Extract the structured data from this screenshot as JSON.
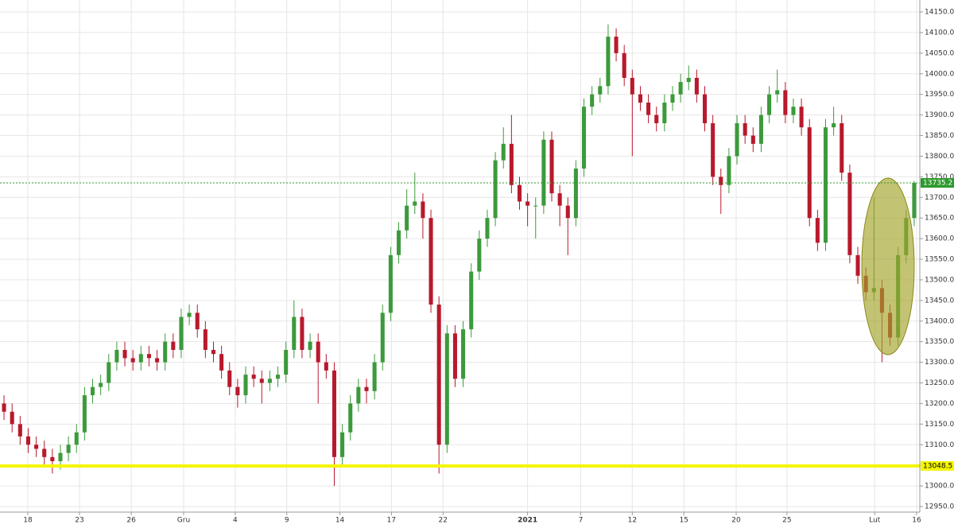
{
  "chart_data": {
    "type": "candlestick",
    "up_color": "#3c9a3c",
    "down_color": "#b8192c",
    "grid": true,
    "xlim": [
      -0.5,
      113.5
    ],
    "xticks": [
      {
        "value": 2.95,
        "label": "18"
      },
      {
        "value": 9.37,
        "label": "23"
      },
      {
        "value": 15.8,
        "label": "26"
      },
      {
        "value": 22.3,
        "label": "Gru"
      },
      {
        "value": 28.7,
        "label": "4"
      },
      {
        "value": 35.1,
        "label": "9"
      },
      {
        "value": 41.7,
        "label": "14"
      },
      {
        "value": 48.1,
        "label": "17"
      },
      {
        "value": 54.5,
        "label": "22"
      },
      {
        "value": 65,
        "label": "2021"
      },
      {
        "value": 71.6,
        "label": "7"
      },
      {
        "value": 78,
        "label": "12"
      },
      {
        "value": 84.4,
        "label": "15"
      },
      {
        "value": 90.9,
        "label": "20"
      },
      {
        "value": 97.2,
        "label": "25"
      },
      {
        "value": 108.1,
        "label": "Lut"
      },
      {
        "value": 113.3,
        "label": "16"
      }
    ],
    "ylim": [
      12950,
      14150
    ],
    "yticks": [
      {
        "value": 12950,
        "label": "12950.0"
      },
      {
        "value": 13000,
        "label": "13000.0"
      },
      {
        "value": 13050,
        "label": "13050.0"
      },
      {
        "value": 13100,
        "label": "13100.0"
      },
      {
        "value": 13150,
        "label": "13150.0"
      },
      {
        "value": 13200,
        "label": "13200.0"
      },
      {
        "value": 13250,
        "label": "13250.0"
      },
      {
        "value": 13300,
        "label": "13300.0"
      },
      {
        "value": 13350,
        "label": "13350.0"
      },
      {
        "value": 13400,
        "label": "13400.0"
      },
      {
        "value": 13450,
        "label": "13450.0"
      },
      {
        "value": 13500,
        "label": "13500.0"
      },
      {
        "value": 13550,
        "label": "13550.0"
      },
      {
        "value": 13600,
        "label": "13600.0"
      },
      {
        "value": 13650,
        "label": "13650.0"
      },
      {
        "value": 13700,
        "label": "13700.0"
      },
      {
        "value": 13750,
        "label": "13750.0"
      },
      {
        "value": 13800,
        "label": "13800.0"
      },
      {
        "value": 13850,
        "label": "13850.0"
      },
      {
        "value": 13900,
        "label": "13900.0"
      },
      {
        "value": 13950,
        "label": "13950.0"
      },
      {
        "value": 14000,
        "label": "14000.0"
      },
      {
        "value": 14050,
        "label": "14050.0"
      },
      {
        "value": 14100,
        "label": "14100.0"
      },
      {
        "value": 14150,
        "label": "14150.0"
      }
    ],
    "price_lines": [
      {
        "value": 13048.5,
        "color": "#f5f500"
      },
      {
        "value": 13735.2,
        "color": "#2e9a2e"
      }
    ],
    "open": [
      13200,
      13180,
      13150,
      13120,
      13100,
      13090,
      13070,
      13060,
      13080,
      13100,
      13130,
      13220,
      13240,
      13250,
      13300,
      13330,
      13310,
      13300,
      13320,
      13310,
      13300,
      13350,
      13330,
      13410,
      13420,
      13380,
      13330,
      13320,
      13280,
      13240,
      13220,
      13270,
      13260,
      13250,
      13260,
      13270,
      13330,
      13410,
      13330,
      13350,
      13300,
      13280,
      13070,
      13130,
      13200,
      13240,
      13230,
      13300,
      13420,
      13560,
      13620,
      13680,
      13690,
      13650,
      13440,
      13100,
      13370,
      13260,
      13380,
      13520,
      13600,
      13650,
      13790,
      13830,
      13730,
      13690,
      13680,
      13680,
      13840,
      13710,
      13680,
      13650,
      13770,
      13920,
      13950,
      13970,
      14090,
      14050,
      13990,
      13950,
      13930,
      13900,
      13880,
      13930,
      13950,
      13980,
      13990,
      13950,
      13880,
      13750,
      13730,
      13800,
      13880,
      13850,
      13830,
      13900,
      13950,
      13960,
      13900,
      13920,
      13870,
      13650,
      13590,
      13870,
      13880,
      13760,
      13560,
      13510,
      13470,
      13480,
      13420,
      13360,
      13560,
      13650
    ],
    "high": [
      13220,
      13200,
      13170,
      13140,
      13120,
      13110,
      13090,
      13100,
      13120,
      13150,
      13240,
      13260,
      13270,
      13320,
      13350,
      13350,
      13330,
      13340,
      13340,
      13330,
      13370,
      13370,
      13430,
      13440,
      13440,
      13400,
      13350,
      13340,
      13300,
      13260,
      13290,
      13290,
      13280,
      13280,
      13290,
      13350,
      13450,
      13430,
      13370,
      13370,
      13320,
      13300,
      13150,
      13220,
      13260,
      13260,
      13320,
      13440,
      13580,
      13640,
      13720,
      13760,
      13710,
      13670,
      13460,
      13390,
      13390,
      13400,
      13540,
      13620,
      13670,
      13810,
      13870,
      13900,
      13750,
      13710,
      13700,
      13860,
      13860,
      13730,
      13700,
      13790,
      13940,
      13970,
      13990,
      14120,
      14110,
      14070,
      14010,
      13970,
      13950,
      13920,
      13950,
      13970,
      14000,
      14020,
      14010,
      13970,
      13900,
      13770,
      13820,
      13900,
      13900,
      13870,
      13920,
      13970,
      14010,
      13980,
      13940,
      13940,
      13890,
      13670,
      13890,
      13920,
      13900,
      13780,
      13580,
      13530,
      13700,
      13500,
      13440,
      13580,
      13670,
      13740
    ],
    "low": [
      13160,
      13130,
      13100,
      13080,
      13070,
      13050,
      13030,
      13040,
      13060,
      13080,
      13110,
      13200,
      13220,
      13230,
      13280,
      13290,
      13280,
      13280,
      13290,
      13280,
      13280,
      13310,
      13310,
      13390,
      13360,
      13310,
      13300,
      13260,
      13220,
      13190,
      13200,
      13240,
      13200,
      13230,
      13240,
      13250,
      13310,
      13310,
      13310,
      13200,
      13260,
      13000,
      13050,
      13110,
      13180,
      13200,
      13210,
      13280,
      13400,
      13540,
      13600,
      13660,
      13600,
      13420,
      13030,
      13080,
      13240,
      13240,
      13360,
      13500,
      13580,
      13630,
      13770,
      13710,
      13670,
      13630,
      13600,
      13660,
      13690,
      13630,
      13560,
      13630,
      13750,
      13900,
      13930,
      13950,
      14030,
      13970,
      13800,
      13910,
      13880,
      13860,
      13860,
      13910,
      13930,
      13960,
      13930,
      13860,
      13730,
      13660,
      13710,
      13780,
      13830,
      13810,
      13810,
      13880,
      13930,
      13880,
      13880,
      13850,
      13630,
      13570,
      13570,
      13850,
      13740,
      13540,
      13490,
      13450,
      13450,
      13300,
      13340,
      13340,
      13540,
      13630
    ],
    "close": [
      13180,
      13150,
      13120,
      13100,
      13090,
      13070,
      13060,
      13080,
      13100,
      13130,
      13220,
      13240,
      13250,
      13300,
      13330,
      13310,
      13300,
      13320,
      13310,
      13300,
      13350,
      13330,
      13410,
      13420,
      13380,
      13330,
      13320,
      13280,
      13240,
      13220,
      13270,
      13260,
      13250,
      13260,
      13270,
      13330,
      13410,
      13330,
      13350,
      13300,
      13280,
      13070,
      13130,
      13200,
      13240,
      13230,
      13300,
      13420,
      13560,
      13620,
      13680,
      13690,
      13650,
      13440,
      13100,
      13370,
      13260,
      13380,
      13520,
      13600,
      13650,
      13790,
      13830,
      13730,
      13690,
      13680,
      13680,
      13840,
      13710,
      13680,
      13650,
      13770,
      13920,
      13950,
      13970,
      14090,
      14050,
      13990,
      13950,
      13930,
      13900,
      13880,
      13930,
      13950,
      13980,
      13990,
      13950,
      13880,
      13750,
      13730,
      13800,
      13880,
      13850,
      13830,
      13900,
      13950,
      13960,
      13900,
      13920,
      13870,
      13650,
      13590,
      13870,
      13880,
      13760,
      13560,
      13510,
      13470,
      13480,
      13420,
      13360,
      13560,
      13650,
      13735.2
    ]
  }
}
